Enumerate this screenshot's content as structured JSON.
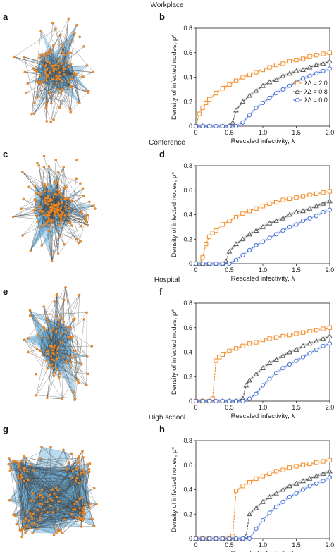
{
  "panels": [
    {
      "title": "Workplace",
      "net_label": "a",
      "plot_label": "b"
    },
    {
      "title": "Conference",
      "net_label": "c",
      "plot_label": "d"
    },
    {
      "title": "Hospital",
      "net_label": "e",
      "plot_label": "f"
    },
    {
      "title": "High school",
      "net_label": "g",
      "plot_label": "h"
    }
  ],
  "colors": {
    "orange": "#f28e2b",
    "gray": "#555555",
    "blue": "#4a72d6",
    "simplex": "#6aaed6",
    "edge": "#444444",
    "node": "#f28e2b"
  },
  "chart_data": [
    {
      "type": "line",
      "title": "Workplace",
      "xlabel": "Rescaled infectivity, λ",
      "ylabel": "Density of infected nodes, ρ*",
      "xlim": [
        0,
        2.0
      ],
      "ylim": [
        0,
        0.8
      ],
      "xticks": [
        "0",
        "0.5",
        "1.0",
        "1.5",
        "2.0"
      ],
      "yticks": [
        "0",
        "0.2",
        "0.4",
        "0.6",
        "0.8"
      ],
      "legend": "right",
      "series": [
        {
          "name": "λΔ = 2.0",
          "marker": "square",
          "color": "#f28e2b",
          "x": [
            0,
            0.05,
            0.1,
            0.15,
            0.2,
            0.3,
            0.4,
            0.5,
            0.6,
            0.7,
            0.8,
            0.9,
            1.0,
            1.1,
            1.2,
            1.3,
            1.4,
            1.5,
            1.6,
            1.7,
            1.8,
            1.9,
            2.0
          ],
          "y": [
            0,
            0.1,
            0.15,
            0.19,
            0.22,
            0.27,
            0.31,
            0.34,
            0.37,
            0.4,
            0.42,
            0.44,
            0.46,
            0.48,
            0.5,
            0.51,
            0.53,
            0.54,
            0.55,
            0.57,
            0.58,
            0.59,
            0.6
          ]
        },
        {
          "name": "λΔ = 0.8",
          "marker": "triangle",
          "color": "#555555",
          "x": [
            0,
            0.1,
            0.2,
            0.3,
            0.4,
            0.5,
            0.55,
            0.6,
            0.7,
            0.8,
            0.9,
            1.0,
            1.1,
            1.2,
            1.3,
            1.4,
            1.5,
            1.6,
            1.7,
            1.8,
            1.9,
            2.0
          ],
          "y": [
            0,
            0,
            0,
            0,
            0,
            0,
            0.03,
            0.13,
            0.2,
            0.25,
            0.29,
            0.33,
            0.36,
            0.38,
            0.41,
            0.43,
            0.45,
            0.46,
            0.48,
            0.5,
            0.51,
            0.53
          ]
        },
        {
          "name": "λΔ = 0.0",
          "marker": "circle",
          "color": "#4a72d6",
          "x": [
            0,
            0.1,
            0.2,
            0.3,
            0.4,
            0.5,
            0.6,
            0.7,
            0.8,
            0.9,
            1.0,
            1.1,
            1.2,
            1.3,
            1.4,
            1.5,
            1.6,
            1.7,
            1.8,
            1.9,
            2.0
          ],
          "y": [
            0,
            0,
            0,
            0,
            0,
            0,
            0,
            0.03,
            0.09,
            0.15,
            0.19,
            0.23,
            0.27,
            0.3,
            0.33,
            0.36,
            0.39,
            0.41,
            0.43,
            0.45,
            0.47
          ]
        }
      ]
    },
    {
      "type": "line",
      "title": "Conference",
      "xlabel": "Rescaled infectivity, λ",
      "ylabel": "Density of infected nodes, ρ*",
      "xlim": [
        0,
        2.0
      ],
      "ylim": [
        0,
        0.8
      ],
      "xticks": [
        "0",
        "0.5",
        "1.0",
        "1.5",
        "2.0"
      ],
      "yticks": [
        "0",
        "0.2",
        "0.4",
        "0.6",
        "0.8"
      ],
      "series": [
        {
          "name": "λΔ = 2.0",
          "marker": "square",
          "color": "#f28e2b",
          "x": [
            0,
            0.05,
            0.1,
            0.15,
            0.2,
            0.25,
            0.3,
            0.4,
            0.5,
            0.6,
            0.7,
            0.8,
            0.9,
            1.0,
            1.1,
            1.2,
            1.3,
            1.4,
            1.5,
            1.6,
            1.7,
            1.8,
            1.9,
            2.0
          ],
          "y": [
            0,
            0,
            0.05,
            0.16,
            0.22,
            0.25,
            0.27,
            0.32,
            0.35,
            0.38,
            0.41,
            0.43,
            0.45,
            0.47,
            0.49,
            0.5,
            0.52,
            0.53,
            0.54,
            0.55,
            0.56,
            0.57,
            0.58,
            0.59
          ]
        },
        {
          "name": "λΔ = 0.8",
          "marker": "triangle",
          "color": "#555555",
          "x": [
            0,
            0.1,
            0.2,
            0.3,
            0.4,
            0.45,
            0.5,
            0.6,
            0.7,
            0.8,
            0.9,
            1.0,
            1.1,
            1.2,
            1.3,
            1.4,
            1.5,
            1.6,
            1.7,
            1.8,
            1.9,
            2.0
          ],
          "y": [
            0,
            0,
            0,
            0,
            0,
            0.02,
            0.1,
            0.16,
            0.2,
            0.24,
            0.27,
            0.3,
            0.33,
            0.35,
            0.37,
            0.4,
            0.42,
            0.43,
            0.45,
            0.47,
            0.49,
            0.51
          ]
        },
        {
          "name": "λΔ = 0.0",
          "marker": "circle",
          "color": "#4a72d6",
          "x": [
            0,
            0.1,
            0.2,
            0.3,
            0.4,
            0.5,
            0.6,
            0.7,
            0.8,
            0.9,
            1.0,
            1.1,
            1.2,
            1.3,
            1.4,
            1.5,
            1.6,
            1.7,
            1.8,
            1.9,
            2.0
          ],
          "y": [
            0,
            0,
            0,
            0,
            0,
            0,
            0.03,
            0.07,
            0.11,
            0.15,
            0.18,
            0.21,
            0.24,
            0.27,
            0.3,
            0.32,
            0.35,
            0.37,
            0.39,
            0.42,
            0.44
          ]
        }
      ]
    },
    {
      "type": "line",
      "title": "Hospital",
      "xlabel": "Rescaled infectivity, λ",
      "ylabel": "Density of infected nodes, ρ*",
      "xlim": [
        0,
        2.0
      ],
      "ylim": [
        0,
        0.8
      ],
      "xticks": [
        "0",
        "0.5",
        "1.0",
        "1.5",
        "2.0"
      ],
      "yticks": [
        "0",
        "0.2",
        "0.4",
        "0.6",
        "0.8"
      ],
      "series": [
        {
          "name": "λΔ = 2.0",
          "marker": "square",
          "color": "#f28e2b",
          "x": [
            0,
            0.1,
            0.2,
            0.25,
            0.3,
            0.35,
            0.4,
            0.5,
            0.6,
            0.7,
            0.8,
            0.9,
            1.0,
            1.1,
            1.2,
            1.3,
            1.4,
            1.5,
            1.6,
            1.7,
            1.8,
            1.9,
            2.0
          ],
          "y": [
            0,
            0,
            0,
            0.02,
            0.33,
            0.36,
            0.38,
            0.41,
            0.43,
            0.45,
            0.47,
            0.48,
            0.5,
            0.51,
            0.52,
            0.53,
            0.54,
            0.55,
            0.56,
            0.57,
            0.58,
            0.59,
            0.6
          ]
        },
        {
          "name": "λΔ = 0.8",
          "marker": "triangle",
          "color": "#555555",
          "x": [
            0,
            0.1,
            0.2,
            0.3,
            0.4,
            0.5,
            0.6,
            0.7,
            0.75,
            0.8,
            0.9,
            1.0,
            1.1,
            1.2,
            1.3,
            1.4,
            1.5,
            1.6,
            1.7,
            1.8,
            1.9,
            2.0
          ],
          "y": [
            0,
            0,
            0,
            0,
            0,
            0,
            0,
            0.02,
            0.13,
            0.17,
            0.22,
            0.27,
            0.31,
            0.34,
            0.37,
            0.4,
            0.42,
            0.45,
            0.47,
            0.49,
            0.51,
            0.53
          ]
        },
        {
          "name": "λΔ = 0.0",
          "marker": "circle",
          "color": "#4a72d6",
          "x": [
            0,
            0.1,
            0.2,
            0.3,
            0.4,
            0.5,
            0.6,
            0.7,
            0.8,
            0.9,
            1.0,
            1.1,
            1.2,
            1.3,
            1.4,
            1.5,
            1.6,
            1.7,
            1.8,
            1.9,
            2.0
          ],
          "y": [
            0,
            0,
            0,
            0,
            0,
            0,
            0,
            0,
            0.02,
            0.06,
            0.13,
            0.18,
            0.23,
            0.27,
            0.3,
            0.33,
            0.36,
            0.39,
            0.42,
            0.45,
            0.47
          ]
        }
      ]
    },
    {
      "type": "line",
      "title": "High school",
      "xlabel": "Rescaled infectivity, λ",
      "ylabel": "Density of infected nodes, ρ*",
      "xlim": [
        0,
        2.0
      ],
      "ylim": [
        0,
        0.8
      ],
      "xticks": [
        "0",
        "0.5",
        "1.0",
        "1.5",
        "2.0"
      ],
      "yticks": [
        "0",
        "0.2",
        "0.4",
        "0.6",
        "0.8"
      ],
      "series": [
        {
          "name": "λΔ = 2.0",
          "marker": "square",
          "color": "#f28e2b",
          "x": [
            0,
            0.1,
            0.2,
            0.3,
            0.4,
            0.5,
            0.55,
            0.6,
            0.7,
            0.8,
            0.9,
            1.0,
            1.1,
            1.2,
            1.3,
            1.4,
            1.5,
            1.6,
            1.7,
            1.8,
            1.9,
            2.0
          ],
          "y": [
            0,
            0,
            0,
            0,
            0,
            0,
            0.02,
            0.39,
            0.43,
            0.46,
            0.49,
            0.51,
            0.53,
            0.55,
            0.56,
            0.58,
            0.59,
            0.6,
            0.61,
            0.62,
            0.63,
            0.64
          ]
        },
        {
          "name": "λΔ = 0.8",
          "marker": "triangle",
          "color": "#555555",
          "x": [
            0,
            0.1,
            0.2,
            0.3,
            0.4,
            0.5,
            0.6,
            0.7,
            0.75,
            0.8,
            0.9,
            1.0,
            1.1,
            1.2,
            1.3,
            1.4,
            1.5,
            1.6,
            1.7,
            1.8,
            1.9,
            2.0
          ],
          "y": [
            0,
            0,
            0,
            0,
            0,
            0,
            0,
            0,
            0.02,
            0.2,
            0.25,
            0.3,
            0.34,
            0.37,
            0.4,
            0.43,
            0.45,
            0.47,
            0.49,
            0.51,
            0.53,
            0.55
          ]
        },
        {
          "name": "λΔ = 0.0",
          "marker": "circle",
          "color": "#4a72d6",
          "x": [
            0,
            0.1,
            0.2,
            0.3,
            0.4,
            0.5,
            0.6,
            0.7,
            0.8,
            0.9,
            1.0,
            1.1,
            1.2,
            1.3,
            1.4,
            1.5,
            1.6,
            1.7,
            1.8,
            1.9,
            2.0
          ],
          "y": [
            0,
            0,
            0,
            0,
            0,
            0,
            0,
            0,
            0,
            0.08,
            0.15,
            0.21,
            0.26,
            0.3,
            0.34,
            0.37,
            0.4,
            0.43,
            0.45,
            0.47,
            0.5
          ]
        }
      ]
    }
  ]
}
